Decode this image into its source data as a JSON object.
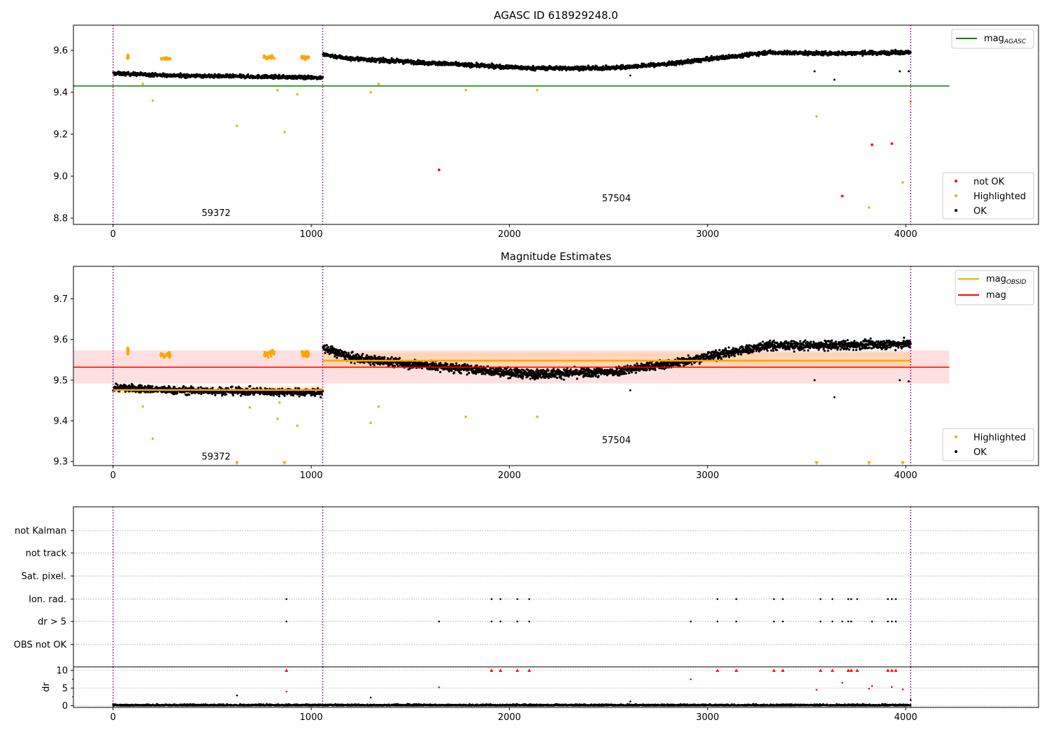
{
  "figure": {
    "colors": {
      "ok": "#000000",
      "highlighted": "#ffa500",
      "not_ok": "#ff0000",
      "mag_agasc": "#008000",
      "mag_obsid": "#ffa500",
      "mag": "#ff0000",
      "obs_boundary": "#800080",
      "mag_band": "#ffcccc"
    }
  },
  "chart_data": [
    {
      "type": "scatter",
      "title": "AGASC ID 618929248.0",
      "xlim": [
        -200,
        4670
      ],
      "ylim": [
        8.77,
        9.72
      ],
      "xticks": [
        0,
        1000,
        2000,
        3000,
        4000
      ],
      "yticks": [
        8.8,
        9.0,
        9.2,
        9.4,
        9.6
      ],
      "legend_top": [
        {
          "label": "mag",
          "sub": "AGASC",
          "color": "#008000"
        }
      ],
      "legend_bottom": [
        {
          "label": "not OK",
          "color": "#ff0000"
        },
        {
          "label": "Highlighted",
          "color": "#ffa500"
        },
        {
          "label": "OK",
          "color": "#000000"
        }
      ],
      "mag_agasc": 9.43,
      "mag_agasc_xrange": [
        -200,
        4220
      ],
      "obs_boundaries": [
        0,
        1058,
        4025
      ],
      "obs_labels": [
        {
          "text": "59372",
          "x": 520,
          "y": 8.81
        },
        {
          "text": "57504",
          "x": 2540,
          "y": 8.88
        }
      ],
      "segments": [
        {
          "x": [
            0,
            1058
          ],
          "levels": [
            [
              0,
              9.49
            ],
            [
              300,
              9.48
            ],
            [
              1058,
              9.47
            ]
          ],
          "scatter": 0.008
        },
        {
          "x": [
            1058,
            4025
          ],
          "levels": [
            [
              1058,
              9.58
            ],
            [
              1200,
              9.56
            ],
            [
              1600,
              9.54
            ],
            [
              2100,
              9.515
            ],
            [
              2500,
              9.515
            ],
            [
              2800,
              9.535
            ],
            [
              3300,
              9.59
            ],
            [
              3600,
              9.585
            ],
            [
              4025,
              9.59
            ]
          ],
          "scatter": 0.009
        }
      ],
      "highlight_clusters": [
        {
          "x": [
            72,
            78
          ],
          "y": 9.57
        },
        {
          "x": [
            240,
            290
          ],
          "y": 9.56
        },
        {
          "x": [
            760,
            815
          ],
          "y": 9.565
        },
        {
          "x": [
            950,
            990
          ],
          "y": 9.565
        }
      ],
      "highlighted_points": [
        [
          200,
          9.36
        ],
        [
          150,
          9.44
        ],
        [
          625,
          9.24
        ],
        [
          830,
          9.41
        ],
        [
          865,
          9.21
        ],
        [
          930,
          9.39
        ],
        [
          1300,
          9.4
        ],
        [
          1340,
          9.44
        ],
        [
          1780,
          9.41
        ],
        [
          2140,
          9.41
        ],
        [
          3550,
          9.285
        ],
        [
          3815,
          8.85
        ],
        [
          3985,
          8.97
        ],
        [
          4025,
          9.355
        ]
      ],
      "not_ok_points": [
        [
          1645,
          9.03
        ],
        [
          3680,
          8.905
        ],
        [
          3830,
          9.15
        ],
        [
          3930,
          9.155
        ]
      ],
      "ok_outliers": [
        [
          3540,
          9.5
        ],
        [
          3640,
          9.46
        ],
        [
          3970,
          9.5
        ],
        [
          4015,
          9.5
        ],
        [
          2610,
          9.48
        ]
      ]
    },
    {
      "type": "scatter",
      "title": "Magnitude Estimates",
      "xlim": [
        -200,
        4670
      ],
      "ylim": [
        9.29,
        9.78
      ],
      "xticks": [
        0,
        1000,
        2000,
        3000,
        4000
      ],
      "yticks": [
        9.3,
        9.4,
        9.5,
        9.6,
        9.7
      ],
      "legend_top": [
        {
          "label": "mag",
          "sub": "OBSID",
          "color": "#ffa500"
        },
        {
          "label": "mag",
          "sub": "",
          "color": "#ff0000"
        }
      ],
      "legend_bottom": [
        {
          "label": "Highlighted",
          "color": "#ffa500"
        },
        {
          "label": "OK",
          "color": "#000000"
        }
      ],
      "mag": 9.532,
      "mag_band": [
        9.492,
        9.573
      ],
      "mag_xrange": [
        -200,
        4220
      ],
      "mag_obsid": [
        {
          "x": [
            0,
            1058
          ],
          "value": 9.476,
          "band": [
            9.466,
            9.486
          ]
        },
        {
          "x": [
            1058,
            4025
          ],
          "value": 9.548,
          "band": [
            9.528,
            9.568
          ]
        }
      ],
      "obs_boundaries": [
        0,
        1058,
        4025
      ],
      "obs_labels": [
        {
          "text": "59372",
          "x": 520,
          "y": 9.305
        },
        {
          "text": "57504",
          "x": 2540,
          "y": 9.345
        }
      ],
      "segments": [
        {
          "x": [
            0,
            1058
          ],
          "levels": [
            [
              0,
              9.482
            ],
            [
              300,
              9.475
            ],
            [
              1058,
              9.47
            ]
          ],
          "scatter": 0.009
        },
        {
          "x": [
            1058,
            4025
          ],
          "levels": [
            [
              1058,
              9.58
            ],
            [
              1200,
              9.555
            ],
            [
              1600,
              9.535
            ],
            [
              2100,
              9.515
            ],
            [
              2500,
              9.52
            ],
            [
              2800,
              9.54
            ],
            [
              3300,
              9.585
            ],
            [
              3600,
              9.585
            ],
            [
              4025,
              9.59
            ]
          ],
          "scatter": 0.011
        }
      ],
      "highlight_clusters": [
        {
          "x": [
            72,
            78
          ],
          "y": 9.572
        },
        {
          "x": [
            240,
            290
          ],
          "y": 9.562
        },
        {
          "x": [
            760,
            815
          ],
          "y": 9.565
        },
        {
          "x": [
            950,
            990
          ],
          "y": 9.565
        }
      ],
      "highlighted_points": [
        [
          200,
          9.356
        ],
        [
          150,
          9.435
        ],
        [
          690,
          9.433
        ],
        [
          830,
          9.405
        ],
        [
          840,
          9.445
        ],
        [
          930,
          9.388
        ],
        [
          1300,
          9.395
        ],
        [
          1340,
          9.435
        ],
        [
          1780,
          9.41
        ],
        [
          2140,
          9.41
        ],
        [
          4025,
          9.352
        ]
      ],
      "clipped_low": [
        625,
        865,
        3550,
        3815,
        3985
      ],
      "ok_outliers": [
        [
          3540,
          9.5
        ],
        [
          3640,
          9.458
        ],
        [
          3970,
          9.5
        ],
        [
          4015,
          9.497
        ],
        [
          2610,
          9.475
        ]
      ]
    },
    {
      "type": "scatter",
      "title": "",
      "xlim": [
        -200,
        4670
      ],
      "flag_labels": [
        "not Kalman",
        "not track",
        "Sat. pixel.",
        "Ion. rad.",
        "dr > 5",
        "OBS not OK"
      ],
      "ion_rad_x": [
        875,
        1910,
        1955,
        2040,
        2100,
        3050,
        3145,
        3335,
        3380,
        3570,
        3630,
        3710,
        3725,
        3755,
        3910,
        3930,
        3950
      ],
      "dr5_x": [
        875,
        1645,
        1910,
        1955,
        2040,
        2100,
        2915,
        3050,
        3145,
        3335,
        3380,
        3570,
        3630,
        3680,
        3710,
        3725,
        3830,
        3910,
        3930,
        3950
      ]
    },
    {
      "type": "scatter",
      "title": "",
      "ylabel": "dr",
      "xlim": [
        -200,
        4670
      ],
      "ylim": [
        -0.5,
        11
      ],
      "xticks": [
        0,
        1000,
        2000,
        3000,
        4000
      ],
      "yticks": [
        0,
        5,
        10
      ],
      "clipped_high_x": [
        875,
        1910,
        1955,
        2040,
        2100,
        3050,
        3145,
        3335,
        3380,
        3570,
        3630,
        3710,
        3725,
        3755,
        3910,
        3930,
        3950
      ],
      "red_points": [
        [
          875,
          4.0
        ],
        [
          1645,
          5.2
        ],
        [
          2915,
          7.5
        ],
        [
          3550,
          4.5
        ],
        [
          3680,
          6.5
        ],
        [
          3815,
          4.8
        ],
        [
          3830,
          5.6
        ],
        [
          3930,
          5.3
        ],
        [
          3985,
          4.6
        ]
      ],
      "ok_outliers": [
        [
          625,
          2.9
        ],
        [
          1300,
          2.3
        ],
        [
          4025,
          1.6
        ],
        [
          2610,
          1.2
        ]
      ]
    }
  ]
}
